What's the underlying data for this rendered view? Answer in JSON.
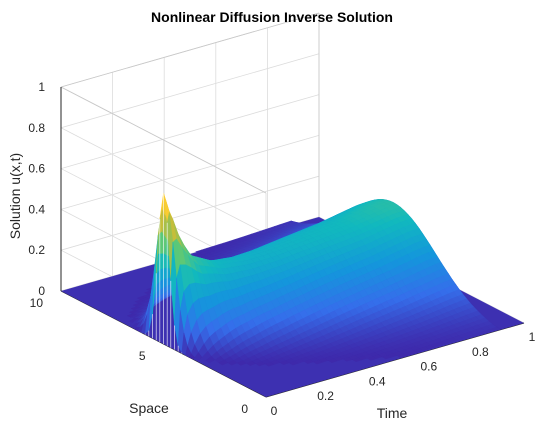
{
  "chart_data": {
    "type": "surface3d",
    "title": "Nonlinear Diffusion Inverse Solution",
    "xlabel": "Time",
    "ylabel": "Space",
    "zlabel": "Solution u(x,t)",
    "xlim": [
      0,
      1
    ],
    "ylim": [
      0,
      10
    ],
    "zlim": [
      0,
      1
    ],
    "xticks": [
      "0",
      "0.2",
      "0.4",
      "0.6",
      "0.8",
      "1"
    ],
    "yticks": [
      "0",
      "5",
      "10"
    ],
    "zticks": [
      "0",
      "0.2",
      "0.4",
      "0.6",
      "0.8",
      "1"
    ],
    "grid": true,
    "colormap": "parula",
    "ridge_x": 5,
    "ridge_t": [
      0,
      0.05,
      0.1,
      0.2,
      0.3,
      0.4,
      0.5,
      0.6,
      0.7,
      0.8,
      0.85,
      0.9
    ],
    "ridge_u": [
      0.74,
      0.52,
      0.4,
      0.33,
      0.31,
      0.31,
      0.32,
      0.33,
      0.34,
      0.36,
      0.37,
      0.37
    ],
    "end_time": 0.9
  },
  "colors": {
    "low": "#3e26a8",
    "mid": "#1fa5d5",
    "high": "#f9fb0e"
  }
}
